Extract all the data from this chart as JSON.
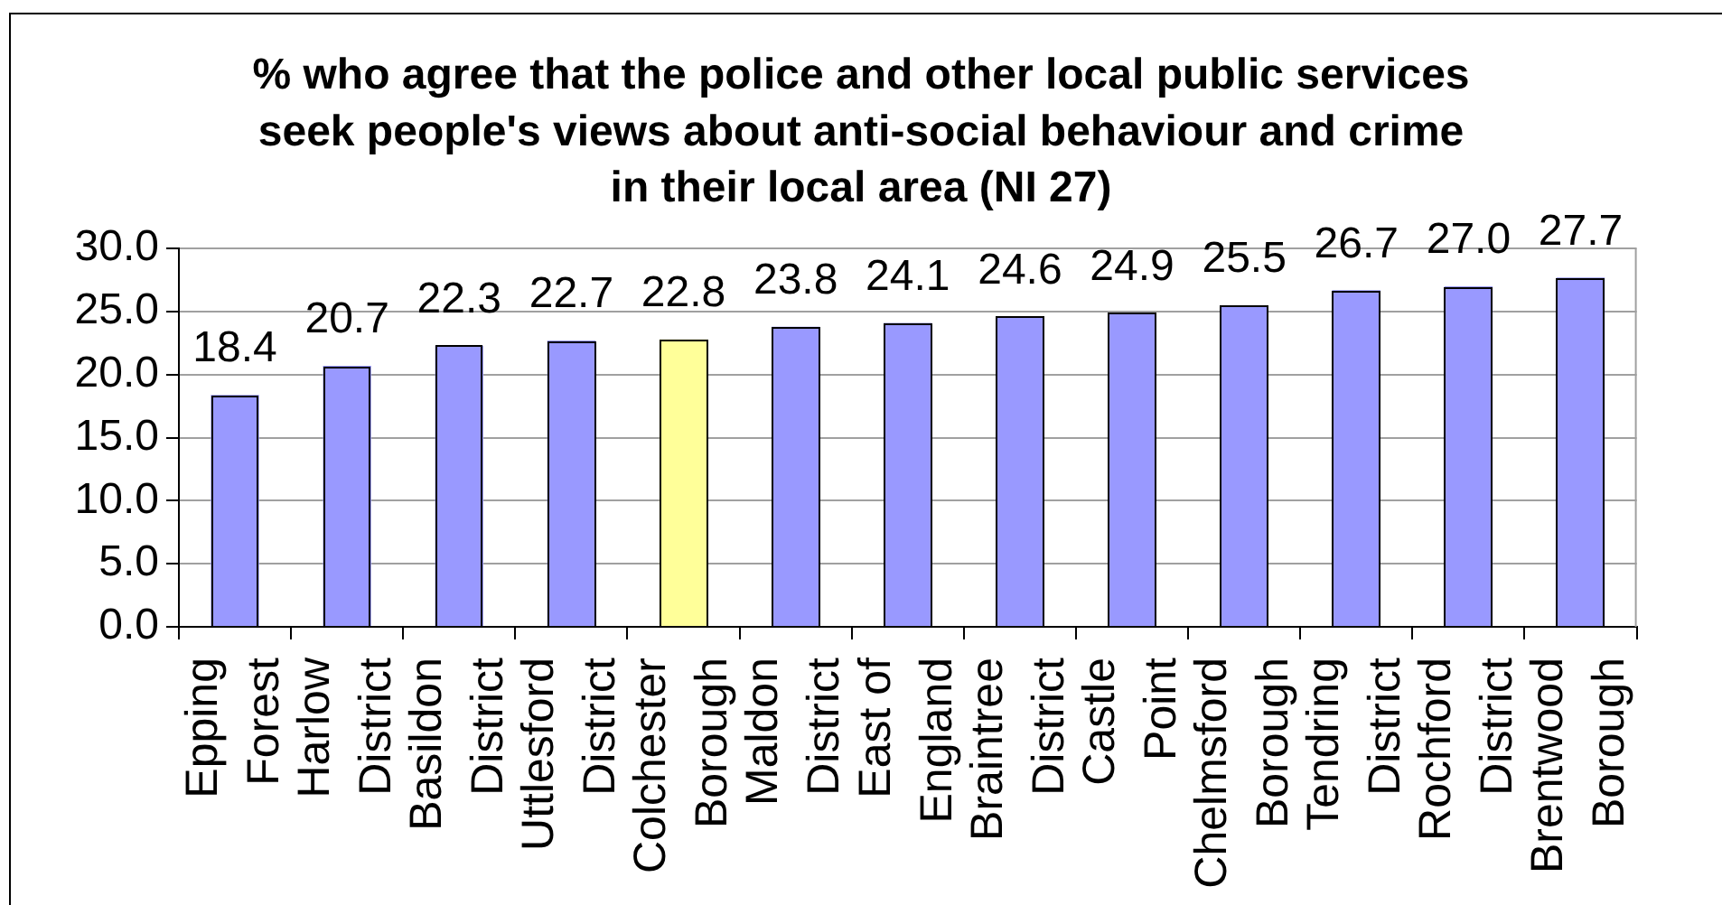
{
  "chart_data": {
    "type": "bar",
    "title": "% who agree that the police and other local public services\nseek people's views about anti-social behaviour and crime\nin their local area (NI 27)",
    "categories": [
      "Epping Forest",
      "Harlow District",
      "Basildon District",
      "Uttlesford District",
      "Colchester Borough",
      "Maldon District",
      "East of England",
      "Braintree District",
      "Castle Point",
      "Chelmsford Borough",
      "Tendring District",
      "Rochford District",
      "Brentwood Borough"
    ],
    "values": [
      18.4,
      20.7,
      22.3,
      22.7,
      22.8,
      23.8,
      24.1,
      24.6,
      24.9,
      25.5,
      26.7,
      27.0,
      27.7
    ],
    "colors": [
      "#9999ff",
      "#9999ff",
      "#9999ff",
      "#9999ff",
      "#ffff99",
      "#9999ff",
      "#9999ff",
      "#9999ff",
      "#9999ff",
      "#9999ff",
      "#9999ff",
      "#9999ff",
      "#9999ff"
    ],
    "value_labels": [
      "18.4",
      "20.7",
      "22.3",
      "22.7",
      "22.8",
      "23.8",
      "24.1",
      "24.6",
      "24.9",
      "25.5",
      "26.7",
      "27.0",
      "27.7"
    ],
    "ylim": [
      0,
      30
    ],
    "yticks": [
      {
        "value": 0,
        "label": "0.0"
      },
      {
        "value": 5,
        "label": "5.0"
      },
      {
        "value": 10,
        "label": "10.0"
      },
      {
        "value": 15,
        "label": "15.0"
      },
      {
        "value": 20,
        "label": "20.0"
      },
      {
        "value": 25,
        "label": "25.0"
      },
      {
        "value": 30,
        "label": "30.0"
      }
    ],
    "grid": "y"
  }
}
